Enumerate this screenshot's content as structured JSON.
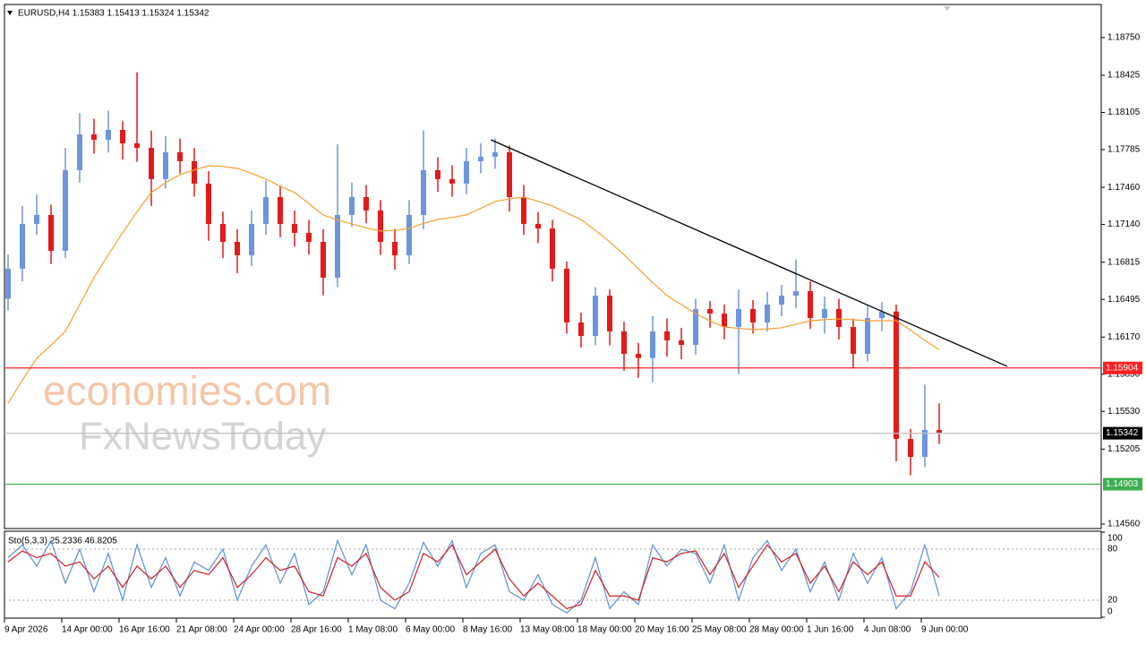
{
  "chart_data": [
    {
      "type": "candlestick",
      "title": "EURUSD,H4  1.15383 1.15413 1.15324 1.15342",
      "watermarks": [
        "economies.com",
        "FxNewsToday"
      ],
      "categories": [
        "9 Apr 2026",
        null,
        null,
        null,
        "14 Apr 00:00",
        null,
        null,
        null,
        "16 Apr 16:00",
        null,
        null,
        null,
        "21 Apr 08:00",
        null,
        null,
        null,
        "24 Apr 00:00",
        null,
        null,
        null,
        "28 Apr 16:00",
        null,
        null,
        null,
        "1 May 08:00",
        null,
        null,
        null,
        "6 May 00:00",
        null,
        null,
        null,
        "8 May 16:00",
        null,
        null,
        null,
        "13 May 08:00",
        null,
        null,
        null,
        "18 May 00:00",
        null,
        null,
        null,
        "20 May 16:00",
        null,
        null,
        null,
        "25 May 08:00",
        null,
        null,
        null,
        "28 May 00:00",
        null,
        null,
        null,
        "1 Jun 16:00",
        null,
        null,
        null,
        "4 Jun 08:00",
        null,
        null,
        null,
        "9 Jun 00:00",
        null
      ],
      "open": [
        1.165,
        1.16759,
        1.17145,
        1.17222,
        1.16913,
        1.17608,
        1.17916,
        1.1787,
        1.17955,
        1.17839,
        1.178,
        1.17531,
        1.17762,
        1.17685,
        1.17492,
        1.17145,
        1.1699,
        1.16875,
        1.17145,
        1.17376,
        1.17145,
        1.17068,
        1.1699,
        1.16682,
        1.17222,
        1.17376,
        1.17261,
        1.1699,
        1.16875,
        1.17222,
        1.17608,
        1.17531,
        1.17492,
        1.17685,
        1.17724,
        1.17762,
        1.17376,
        1.17145,
        1.17106,
        1.16759,
        1.16296,
        1.1618,
        1.16527,
        1.16219,
        1.16026,
        1.1599,
        1.16219,
        1.16142,
        1.16103,
        1.16412,
        1.16373,
        1.16257,
        1.16412,
        1.16296,
        1.1645,
        1.16527,
        1.16566,
        1.16334,
        1.16412,
        1.16257,
        1.16026,
        1.16334,
        1.1639,
        1.15293,
        1.15138,
        1.1537
      ],
      "high": [
        1.1688,
        1.173,
        1.174,
        1.1731,
        1.178,
        1.181,
        1.1805,
        1.1812,
        1.1803,
        1.1845,
        1.1795,
        1.179,
        1.1788,
        1.178,
        1.176,
        1.1725,
        1.171,
        1.1726,
        1.1752,
        1.1747,
        1.1726,
        1.1718,
        1.171,
        1.1783,
        1.175,
        1.1748,
        1.1735,
        1.171,
        1.1735,
        1.1795,
        1.1772,
        1.1765,
        1.178,
        1.1784,
        1.1788,
        1.1782,
        1.1748,
        1.1725,
        1.1718,
        1.1682,
        1.1638,
        1.166,
        1.1658,
        1.163,
        1.1612,
        1.1635,
        1.1633,
        1.1625,
        1.165,
        1.1648,
        1.1645,
        1.1658,
        1.1649,
        1.1656,
        1.1662,
        1.1684,
        1.1665,
        1.1652,
        1.165,
        1.1633,
        1.1644,
        1.1647,
        1.1645,
        1.1538,
        1.1576,
        1.156
      ],
      "low": [
        1.164,
        1.1665,
        1.1705,
        1.168,
        1.1685,
        1.175,
        1.1775,
        1.1776,
        1.177,
        1.1768,
        1.173,
        1.1745,
        1.1758,
        1.1738,
        1.17,
        1.1685,
        1.1672,
        1.1678,
        1.1705,
        1.1703,
        1.1695,
        1.1688,
        1.1653,
        1.166,
        1.1712,
        1.1715,
        1.1688,
        1.1675,
        1.168,
        1.171,
        1.1742,
        1.1738,
        1.174,
        1.1758,
        1.1762,
        1.1725,
        1.1705,
        1.1698,
        1.1665,
        1.162,
        1.1608,
        1.161,
        1.161,
        1.1588,
        1.1582,
        1.1578,
        1.16,
        1.1598,
        1.1602,
        1.1625,
        1.1615,
        1.1585,
        1.162,
        1.1622,
        1.1635,
        1.1642,
        1.1624,
        1.162,
        1.1615,
        1.159,
        1.1596,
        1.1622,
        1.151,
        1.1498,
        1.1505,
        1.1525
      ],
      "close": [
        1.16759,
        1.17145,
        1.17222,
        1.16913,
        1.17608,
        1.17916,
        1.1787,
        1.17955,
        1.17839,
        1.178,
        1.17531,
        1.17762,
        1.17685,
        1.17492,
        1.17145,
        1.1699,
        1.16875,
        1.17145,
        1.17376,
        1.17145,
        1.17068,
        1.1699,
        1.16682,
        1.17222,
        1.17376,
        1.17261,
        1.1699,
        1.16875,
        1.17222,
        1.17608,
        1.17531,
        1.17492,
        1.17685,
        1.17724,
        1.17762,
        1.17376,
        1.17145,
        1.17106,
        1.16759,
        1.16296,
        1.1618,
        1.16527,
        1.16219,
        1.16026,
        1.1599,
        1.16219,
        1.16142,
        1.16103,
        1.16412,
        1.16373,
        1.16257,
        1.16412,
        1.16296,
        1.1645,
        1.16527,
        1.16566,
        1.16334,
        1.16412,
        1.16257,
        1.16026,
        1.16334,
        1.1639,
        1.15293,
        1.15138,
        1.1537,
        1.15342
      ],
      "up_color": "#6d95dd",
      "down_color": "#e01b1b",
      "ma": {
        "color": "#f5a030",
        "values": [
          1.15601,
          1.158,
          1.15987,
          1.161,
          1.16219,
          1.1645,
          1.16682,
          1.1688,
          1.17068,
          1.1725,
          1.17415,
          1.175,
          1.17569,
          1.1761,
          1.17646,
          1.1764,
          1.17623,
          1.1758,
          1.17531,
          1.1747,
          1.17415,
          1.1732,
          1.17222,
          1.1718,
          1.17145,
          1.1711,
          1.17083,
          1.1709,
          1.17106,
          1.1715,
          1.17183,
          1.172,
          1.17222,
          1.1728,
          1.17338,
          1.1736,
          1.17376,
          1.1734,
          1.17299,
          1.1724,
          1.17183,
          1.1709,
          1.1699,
          1.1688,
          1.16759,
          1.1664,
          1.16527,
          1.1645,
          1.16373,
          1.1631,
          1.16257,
          1.16245,
          1.16234,
          1.1624,
          1.1625,
          1.1628,
          1.16311,
          1.1632,
          1.16327,
          1.1632,
          1.16311,
          1.16311,
          1.16311,
          1.1623,
          1.16142,
          1.1606
        ]
      },
      "trendline": {
        "color": "#000000",
        "x": [
          33.7,
          69.75
        ],
        "values": [
          1.1787,
          1.15918
        ]
      },
      "hlines": [
        {
          "value": 1.15904,
          "color": "#ff2020",
          "box": "#ff2020"
        },
        {
          "value": 1.15342,
          "color": "#c0c0c0",
          "box": "#000000"
        },
        {
          "value": 1.14903,
          "color": "#3cb050",
          "box": "#3cb050"
        }
      ],
      "ylim": [
        1.14521,
        1.19035
      ],
      "yticks": [
        {
          "value": 1.1875,
          "label": "1.18750"
        },
        1.18425,
        1.18105,
        1.17785,
        {
          "value": 1.1746,
          "label": "1.17460"
        },
        {
          "value": 1.1714,
          "label": "1.17140"
        },
        1.16815,
        1.16495,
        {
          "value": 1.1617,
          "label": "1.16170"
        },
        {
          "value": 1.1585,
          "label": "1.15850"
        },
        {
          "value": 1.1553,
          "label": "1.15530"
        },
        1.15205,
        {
          "value": 1.1456,
          "label": "1.14560"
        }
      ]
    },
    {
      "type": "line",
      "title": "Sto(5,3,3) 25.2336 46.8205",
      "series": [
        {
          "color": "#5b8fd8",
          "values": [
            70,
            85,
            60,
            90,
            40,
            80,
            30,
            75,
            20,
            85,
            35,
            70,
            25,
            65,
            55,
            80,
            20,
            60,
            85,
            40,
            75,
            15,
            30,
            90,
            50,
            85,
            20,
            10,
            40,
            88,
            60,
            90,
            35,
            75,
            85,
            30,
            20,
            50,
            15,
            5,
            20,
            70,
            10,
            30,
            15,
            85,
            60,
            80,
            75,
            40,
            85,
            20,
            70,
            90,
            55,
            80,
            30,
            65,
            20,
            75,
            40,
            70,
            10,
            30,
            85,
            25.2336
          ]
        },
        {
          "color": "#d42020",
          "values": [
            65,
            78,
            70,
            75,
            60,
            65,
            45,
            60,
            35,
            60,
            45,
            60,
            35,
            55,
            50,
            70,
            35,
            50,
            70,
            55,
            60,
            30,
            25,
            70,
            60,
            75,
            35,
            20,
            30,
            75,
            65,
            85,
            50,
            65,
            80,
            45,
            25,
            40,
            25,
            10,
            15,
            55,
            25,
            25,
            20,
            70,
            65,
            75,
            78,
            50,
            75,
            35,
            60,
            85,
            65,
            75,
            40,
            60,
            30,
            65,
            50,
            65,
            25,
            25,
            65,
            46.8205
          ]
        }
      ],
      "ylim": [
        0,
        100
      ],
      "yticks": [
        100,
        80,
        20,
        0
      ]
    }
  ]
}
